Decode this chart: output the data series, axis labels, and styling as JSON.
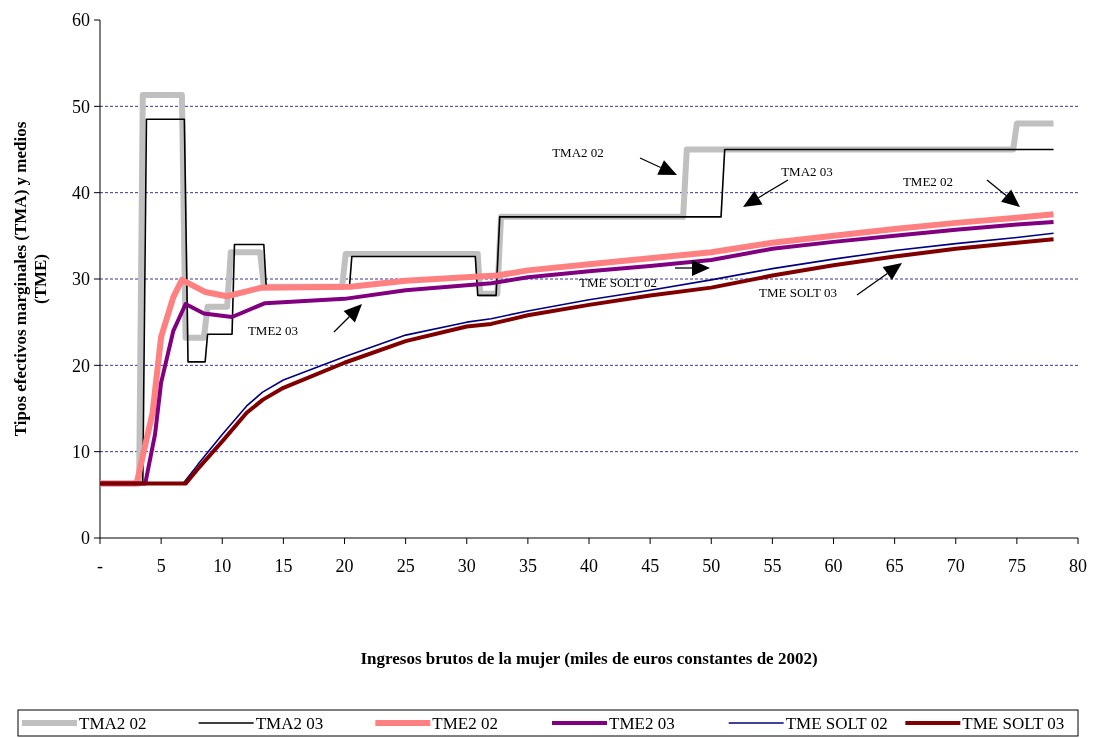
{
  "chart_data": {
    "type": "line",
    "xlabel": "Ingresos brutos de la mujer (miles de euros constantes de 2002)",
    "ylabel": "Tipos efectivos marginales (TMA) y medios (TME)",
    "xlim": [
      0,
      80
    ],
    "xticks": [
      {
        "value": 0,
        "label": "-"
      },
      5,
      10,
      15,
      20,
      25,
      30,
      35,
      40,
      45,
      50,
      55,
      60,
      65,
      70,
      75,
      80
    ],
    "ylim": [
      0,
      60
    ],
    "yticks": [
      0,
      10,
      20,
      30,
      40,
      50,
      60
    ],
    "grid": "y",
    "legend": "bottom",
    "marker": "none",
    "series": [
      {
        "name": "TMA2 02",
        "color": "#c0c0c0",
        "x": [
          0,
          3.2,
          3.5,
          6.7,
          7.0,
          8.5,
          8.8,
          10.4,
          10.7,
          13.1,
          13.4,
          19.8,
          20.1,
          30.9,
          31.1,
          32.5,
          32.8,
          47.7,
          48.0,
          74.7,
          75.0,
          78
        ],
        "values": [
          6.3,
          6.3,
          51.3,
          51.3,
          23.2,
          23.2,
          26.8,
          26.8,
          33.1,
          33.1,
          29.1,
          29.1,
          32.9,
          32.9,
          28.3,
          28.3,
          37.2,
          37.2,
          45.0,
          45.0,
          48.0,
          48.0
        ]
      },
      {
        "name": "TMA2 03",
        "color": "#000000",
        "x": [
          0,
          3.5,
          3.8,
          6.9,
          7.2,
          8.6,
          8.8,
          10.8,
          11.0,
          13.4,
          13.6,
          20.4,
          20.6,
          30.7,
          30.9,
          32.4,
          32.7,
          50.8,
          51.1,
          78
        ],
        "values": [
          6.3,
          6.3,
          48.5,
          48.5,
          20.4,
          20.4,
          23.6,
          23.6,
          34.0,
          34.0,
          29.0,
          29.0,
          32.6,
          32.6,
          28.1,
          28.1,
          37.2,
          37.2,
          45.0,
          45.0
        ]
      },
      {
        "name": "TME2 02",
        "color": "#ff8080",
        "x": [
          0,
          3.0,
          3.5,
          4.3,
          5.0,
          6.0,
          6.7,
          8.6,
          10.4,
          13.2,
          20.5,
          25,
          31,
          32.5,
          35,
          40,
          45,
          50,
          55,
          60,
          65,
          70,
          75,
          78
        ],
        "values": [
          6.3,
          6.3,
          9.5,
          14.5,
          23.3,
          27.9,
          29.9,
          28.5,
          28.0,
          29.0,
          29.1,
          29.8,
          30.3,
          30.4,
          31.0,
          31.7,
          32.4,
          33.1,
          34.2,
          35.0,
          35.8,
          36.5,
          37.1,
          37.5
        ]
      },
      {
        "name": "TME2 03",
        "color": "#800080",
        "x": [
          0,
          3.7,
          4.5,
          5.0,
          6.0,
          7.0,
          8.5,
          10.8,
          13.5,
          20,
          25,
          32,
          35,
          40,
          45,
          50,
          55,
          60,
          65,
          70,
          75,
          78
        ],
        "values": [
          6.3,
          6.3,
          12.0,
          18.0,
          24.0,
          27.1,
          26.0,
          25.6,
          27.2,
          27.7,
          28.7,
          29.5,
          30.2,
          30.9,
          31.5,
          32.2,
          33.5,
          34.3,
          35.0,
          35.7,
          36.3,
          36.6
        ]
      },
      {
        "name": "TME SOLT 02",
        "color": "#000080",
        "x": [
          0,
          6.8,
          8,
          10,
          12,
          13.3,
          15,
          20,
          25,
          30,
          32,
          35,
          40,
          45,
          50,
          55,
          60,
          65,
          70,
          75,
          78
        ],
        "values": [
          6.3,
          6.3,
          8.5,
          12.0,
          15.3,
          16.9,
          18.3,
          21.0,
          23.5,
          25.0,
          25.4,
          26.3,
          27.6,
          28.7,
          29.9,
          31.2,
          32.3,
          33.3,
          34.1,
          34.8,
          35.3
        ]
      },
      {
        "name": "TME SOLT 03",
        "color": "#800000",
        "x": [
          0,
          7.0,
          8,
          10,
          12,
          13.3,
          15,
          20,
          25,
          30,
          32,
          35,
          40,
          45,
          50,
          55,
          60,
          65,
          70,
          75,
          78
        ],
        "values": [
          6.3,
          6.3,
          8.0,
          11.2,
          14.5,
          16.0,
          17.4,
          20.3,
          22.8,
          24.5,
          24.8,
          25.8,
          27.0,
          28.1,
          29.0,
          30.4,
          31.6,
          32.6,
          33.5,
          34.2,
          34.6
        ]
      }
    ],
    "annotations": [
      "TMA2 02",
      "TMA2 03",
      "TME2 02",
      "TME SOLT 02",
      "TME SOLT 03",
      "TME2 03"
    ]
  }
}
